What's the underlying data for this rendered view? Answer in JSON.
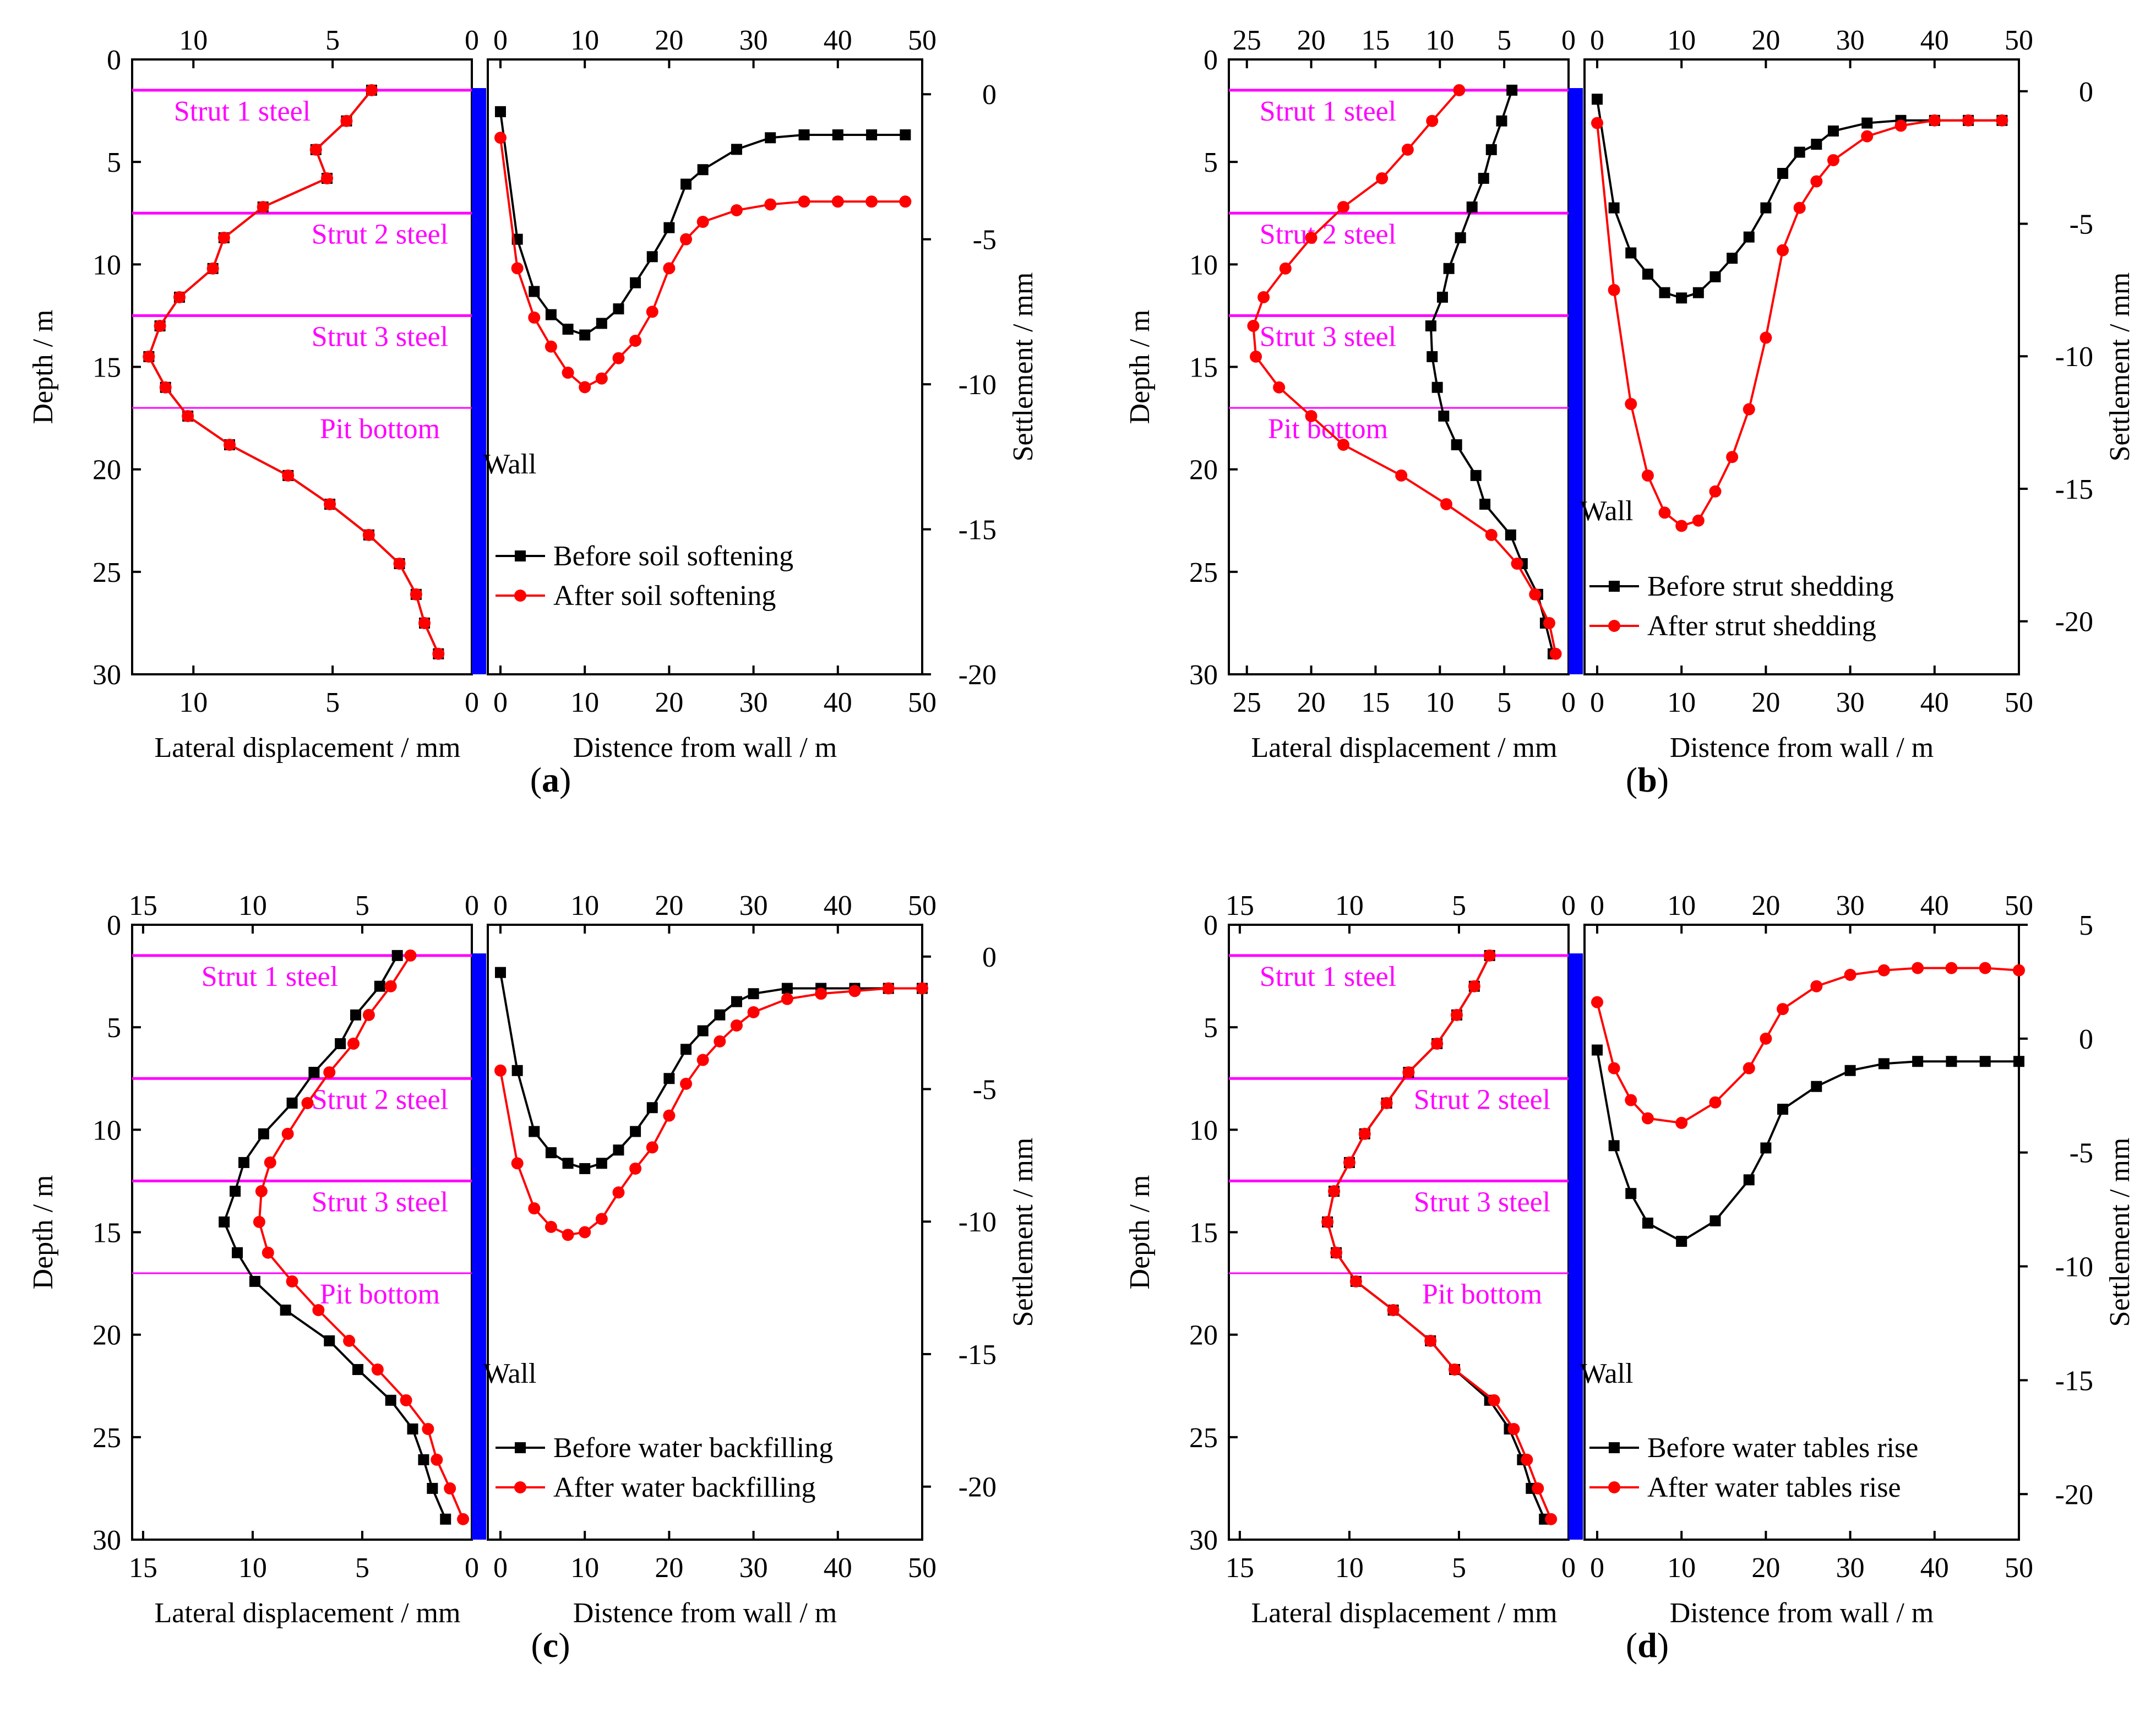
{
  "colors": {
    "before": "#000000",
    "after": "#ff0000",
    "level_line": "#ff00ff",
    "level_text": "#ff00ff",
    "wall": "#0000ff",
    "axis": "#000000"
  },
  "labels": {
    "depth_axis": "Depth / m",
    "settlement_axis": "Settlement / mm",
    "lateral_axis": "Lateral displacement / mm",
    "distance_axis": "Distence from wall / m",
    "wall": "Wall"
  },
  "levels": {
    "strut1": "Strut 1 steel",
    "strut2": "Strut 2 steel",
    "strut3": "Strut 3 steel",
    "pit": "Pit bottom"
  },
  "chart_data": [
    {
      "id": "a",
      "caption_letter": "a",
      "type": "line",
      "depth_range": [
        0,
        30
      ],
      "depth_ticks": [
        0,
        5,
        10,
        15,
        20,
        25,
        30
      ],
      "lateral_range": [
        12.2,
        0
      ],
      "lateral_ticks": [
        10,
        5,
        0
      ],
      "distance_range": [
        -1.5,
        50
      ],
      "distance_ticks": [
        0,
        10,
        20,
        30,
        40,
        50
      ],
      "settlement_range": [
        -20,
        1.2
      ],
      "settlement_ticks": [
        0,
        -5,
        -10,
        -15,
        -20
      ],
      "level_depths": [
        1.5,
        7.5,
        12.5,
        17.0
      ],
      "lateral_series": [
        {
          "name": "Before soil softening",
          "depth": [
            1.5,
            3.0,
            4.4,
            5.8,
            7.2,
            8.7,
            10.2,
            11.6,
            13.0,
            14.5,
            16.0,
            17.4,
            18.8,
            20.3,
            21.7,
            23.2,
            24.6,
            26.1,
            27.5,
            29.0
          ],
          "disp": [
            3.6,
            4.5,
            5.6,
            5.2,
            7.5,
            8.9,
            9.3,
            10.5,
            11.2,
            11.6,
            11.0,
            10.2,
            8.7,
            6.6,
            5.1,
            3.7,
            2.6,
            2.0,
            1.7,
            1.2
          ]
        },
        {
          "name": "After soil softening",
          "depth": [
            1.5,
            3.0,
            4.4,
            5.8,
            7.2,
            8.7,
            10.2,
            11.6,
            13.0,
            14.5,
            16.0,
            17.4,
            18.8,
            20.3,
            21.7,
            23.2,
            24.6,
            26.1,
            27.5,
            29.0
          ],
          "disp": [
            3.6,
            4.5,
            5.6,
            5.2,
            7.5,
            8.9,
            9.3,
            10.5,
            11.2,
            11.6,
            11.0,
            10.2,
            8.7,
            6.6,
            5.1,
            3.7,
            2.6,
            2.0,
            1.7,
            1.2
          ]
        }
      ],
      "settlement_series": [
        {
          "name": "Before soil softening",
          "dist": [
            0,
            2,
            4,
            6,
            8,
            10,
            12,
            14,
            16,
            18,
            20,
            22,
            24,
            28,
            32,
            36,
            40,
            44,
            48
          ],
          "settle": [
            -0.6,
            -5.0,
            -6.8,
            -7.6,
            -8.1,
            -8.3,
            -7.9,
            -7.4,
            -6.5,
            -5.6,
            -4.6,
            -3.1,
            -2.6,
            -1.9,
            -1.5,
            -1.4,
            -1.4,
            -1.4,
            -1.4
          ]
        },
        {
          "name": "After soil softening",
          "dist": [
            0,
            2,
            4,
            6,
            8,
            10,
            12,
            14,
            16,
            18,
            20,
            22,
            24,
            28,
            32,
            36,
            40,
            44,
            48
          ],
          "settle": [
            -1.5,
            -6.0,
            -7.7,
            -8.7,
            -9.6,
            -10.1,
            -9.8,
            -9.1,
            -8.5,
            -7.5,
            -6.0,
            -5.0,
            -4.4,
            -4.0,
            -3.8,
            -3.7,
            -3.7,
            -3.7,
            -3.7
          ]
        }
      ],
      "legend": {
        "before": "Before soil softening",
        "after": "After soil softening",
        "position": "bottom-right"
      }
    },
    {
      "id": "b",
      "caption_letter": "b",
      "type": "line",
      "depth_range": [
        0,
        30
      ],
      "depth_ticks": [
        0,
        5,
        10,
        15,
        20,
        25,
        30
      ],
      "lateral_range": [
        26.4,
        0
      ],
      "lateral_ticks": [
        25,
        20,
        15,
        10,
        5,
        0
      ],
      "distance_range": [
        -1.5,
        50
      ],
      "distance_ticks": [
        0,
        10,
        20,
        30,
        40,
        50
      ],
      "settlement_range": [
        -22,
        1.2
      ],
      "settlement_ticks": [
        0,
        -5,
        -10,
        -15,
        -20
      ],
      "level_depths": [
        1.5,
        7.5,
        12.5,
        17.0
      ],
      "lateral_series": [
        {
          "name": "Before strut shedding",
          "depth": [
            1.5,
            3.0,
            4.4,
            5.8,
            7.2,
            8.7,
            10.2,
            11.6,
            13.0,
            14.5,
            16.0,
            17.4,
            18.8,
            20.3,
            21.7,
            23.2,
            24.6,
            26.1,
            27.5,
            29.0
          ],
          "disp": [
            4.4,
            5.2,
            6.0,
            6.6,
            7.5,
            8.4,
            9.3,
            9.8,
            10.7,
            10.6,
            10.2,
            9.7,
            8.7,
            7.2,
            6.5,
            4.5,
            3.6,
            2.4,
            1.8,
            1.2
          ]
        },
        {
          "name": "After strut shedding",
          "depth": [
            1.5,
            3.0,
            4.4,
            5.8,
            7.2,
            8.7,
            10.2,
            11.6,
            13.0,
            14.5,
            16.0,
            17.4,
            18.8,
            20.3,
            21.7,
            23.2,
            24.6,
            26.1,
            27.5,
            29.0
          ],
          "disp": [
            8.5,
            10.6,
            12.5,
            14.5,
            17.5,
            20.0,
            22.0,
            23.7,
            24.5,
            24.3,
            22.5,
            20.0,
            17.5,
            13.0,
            9.5,
            6.0,
            4.0,
            2.6,
            1.5,
            1.0
          ]
        }
      ],
      "settlement_series": [
        {
          "name": "Before strut shedding",
          "dist": [
            0,
            2,
            4,
            6,
            8,
            10,
            12,
            14,
            16,
            18,
            20,
            22,
            24,
            26,
            28,
            32,
            36,
            40,
            44,
            48
          ],
          "settle": [
            -0.3,
            -4.4,
            -6.1,
            -6.9,
            -7.6,
            -7.8,
            -7.6,
            -7.0,
            -6.3,
            -5.5,
            -4.4,
            -3.1,
            -2.3,
            -2.0,
            -1.5,
            -1.2,
            -1.1,
            -1.1,
            -1.1,
            -1.1
          ]
        },
        {
          "name": "After strut shedding",
          "dist": [
            0,
            2,
            4,
            6,
            8,
            10,
            12,
            14,
            16,
            18,
            20,
            22,
            24,
            26,
            28,
            32,
            36,
            40,
            44,
            48
          ],
          "settle": [
            -1.2,
            -7.5,
            -11.8,
            -14.5,
            -15.9,
            -16.4,
            -16.2,
            -15.1,
            -13.8,
            -12.0,
            -9.3,
            -6.0,
            -4.4,
            -3.4,
            -2.6,
            -1.7,
            -1.3,
            -1.1,
            -1.1,
            -1.1
          ]
        }
      ],
      "legend": {
        "before": "Before strut shedding",
        "after": "After strut shedding",
        "position": "bottom-right"
      }
    },
    {
      "id": "c",
      "caption_letter": "c",
      "type": "line",
      "depth_range": [
        0,
        30
      ],
      "depth_ticks": [
        0,
        5,
        10,
        15,
        20,
        25,
        30
      ],
      "lateral_range": [
        15.5,
        0
      ],
      "lateral_ticks": [
        15,
        10,
        5,
        0
      ],
      "distance_range": [
        -1.5,
        50
      ],
      "distance_ticks": [
        0,
        10,
        20,
        30,
        40,
        50
      ],
      "settlement_range": [
        -22,
        1.2
      ],
      "settlement_ticks": [
        0,
        -5,
        -10,
        -15,
        -20
      ],
      "level_depths": [
        1.5,
        7.5,
        12.5,
        17.0
      ],
      "lateral_series": [
        {
          "name": "Before water backfilling",
          "depth": [
            1.5,
            3.0,
            4.4,
            5.8,
            7.2,
            8.7,
            10.2,
            11.6,
            13.0,
            14.5,
            16.0,
            17.4,
            18.8,
            20.3,
            21.7,
            23.2,
            24.6,
            26.1,
            27.5,
            29.0
          ],
          "disp": [
            3.4,
            4.2,
            5.3,
            6.0,
            7.2,
            8.2,
            9.5,
            10.4,
            10.8,
            11.3,
            10.7,
            9.9,
            8.5,
            6.5,
            5.2,
            3.7,
            2.7,
            2.2,
            1.8,
            1.2
          ]
        },
        {
          "name": "After water backfilling",
          "depth": [
            1.5,
            3.0,
            4.4,
            5.8,
            7.2,
            8.7,
            10.2,
            11.6,
            13.0,
            14.5,
            16.0,
            17.4,
            18.8,
            20.3,
            21.7,
            23.2,
            24.6,
            26.1,
            27.5,
            29.0
          ],
          "disp": [
            2.8,
            3.7,
            4.7,
            5.4,
            6.5,
            7.5,
            8.4,
            9.2,
            9.6,
            9.7,
            9.3,
            8.2,
            7.0,
            5.6,
            4.3,
            3.0,
            2.0,
            1.6,
            1.0,
            0.4
          ]
        }
      ],
      "settlement_series": [
        {
          "name": "Before water backfilling",
          "dist": [
            0,
            2,
            4,
            6,
            8,
            10,
            12,
            14,
            16,
            18,
            20,
            22,
            24,
            26,
            28,
            30,
            34,
            38,
            42,
            46,
            50
          ],
          "settle": [
            -0.6,
            -4.3,
            -6.6,
            -7.4,
            -7.8,
            -8.0,
            -7.8,
            -7.3,
            -6.6,
            -5.7,
            -4.6,
            -3.5,
            -2.8,
            -2.2,
            -1.7,
            -1.4,
            -1.2,
            -1.2,
            -1.2,
            -1.2,
            -1.2
          ]
        },
        {
          "name": "After water backfilling",
          "dist": [
            0,
            2,
            4,
            6,
            8,
            10,
            12,
            14,
            16,
            18,
            20,
            22,
            24,
            26,
            28,
            30,
            34,
            38,
            42,
            46,
            50
          ],
          "settle": [
            -4.3,
            -7.8,
            -9.5,
            -10.2,
            -10.5,
            -10.4,
            -9.9,
            -8.9,
            -8.0,
            -7.2,
            -6.0,
            -4.8,
            -3.9,
            -3.2,
            -2.6,
            -2.1,
            -1.6,
            -1.4,
            -1.3,
            -1.2,
            -1.2
          ]
        }
      ],
      "legend": {
        "before": "Before water backfilling",
        "after": "After water backfilling",
        "position": "bottom-right"
      }
    },
    {
      "id": "d",
      "caption_letter": "d",
      "type": "line",
      "depth_range": [
        0,
        30
      ],
      "depth_ticks": [
        0,
        5,
        10,
        15,
        20,
        25,
        30
      ],
      "lateral_range": [
        15.5,
        0
      ],
      "lateral_ticks": [
        15,
        10,
        5,
        0
      ],
      "distance_range": [
        -1.5,
        50
      ],
      "distance_ticks": [
        0,
        10,
        20,
        30,
        40,
        50
      ],
      "settlement_range": [
        -22,
        5
      ],
      "settlement_ticks": [
        5,
        0,
        -5,
        -10,
        -15,
        -20
      ],
      "level_depths": [
        1.5,
        7.5,
        12.5,
        17.0
      ],
      "lateral_series": [
        {
          "name": "Before water tables rise",
          "depth": [
            1.5,
            3.0,
            4.4,
            5.8,
            7.2,
            8.7,
            10.2,
            11.6,
            13.0,
            14.5,
            16.0,
            17.4,
            18.8,
            20.3,
            21.7,
            23.2,
            24.6,
            26.1,
            27.5,
            29.0
          ],
          "disp": [
            3.6,
            4.3,
            5.1,
            6.0,
            7.3,
            8.3,
            9.3,
            10.0,
            10.7,
            11.0,
            10.6,
            9.7,
            8.0,
            6.3,
            5.2,
            3.6,
            2.7,
            2.1,
            1.7,
            1.1
          ]
        },
        {
          "name": "After water tables rise",
          "depth": [
            1.5,
            3.0,
            4.4,
            5.8,
            7.2,
            8.7,
            10.2,
            11.6,
            13.0,
            14.5,
            16.0,
            17.4,
            18.8,
            20.3,
            21.7,
            23.2,
            24.6,
            26.1,
            27.5,
            29.0
          ],
          "disp": [
            3.6,
            4.3,
            5.1,
            6.0,
            7.3,
            8.3,
            9.3,
            10.0,
            10.7,
            11.0,
            10.6,
            9.7,
            8.0,
            6.3,
            5.2,
            3.4,
            2.5,
            1.9,
            1.4,
            0.8
          ]
        }
      ],
      "settlement_series": [
        {
          "name": "Before water tables rise",
          "dist": [
            0,
            2,
            4,
            6,
            10,
            14,
            18,
            20,
            22,
            26,
            30,
            34,
            38,
            42,
            46,
            50
          ],
          "settle": [
            -0.5,
            -4.7,
            -6.8,
            -8.1,
            -8.9,
            -8.0,
            -6.2,
            -4.8,
            -3.1,
            -2.1,
            -1.4,
            -1.1,
            -1.0,
            -1.0,
            -1.0,
            -1.0
          ]
        },
        {
          "name": "After water tables rise",
          "dist": [
            0,
            2,
            4,
            6,
            10,
            14,
            18,
            20,
            22,
            26,
            30,
            34,
            38,
            42,
            46,
            50
          ],
          "settle": [
            1.6,
            -1.3,
            -2.7,
            -3.5,
            -3.7,
            -2.8,
            -1.3,
            0.0,
            1.3,
            2.3,
            2.8,
            3.0,
            3.1,
            3.1,
            3.1,
            3.0
          ]
        }
      ],
      "legend": {
        "before": "Before water tables rise",
        "after": "After water tables rise",
        "position": "bottom-right"
      }
    }
  ]
}
